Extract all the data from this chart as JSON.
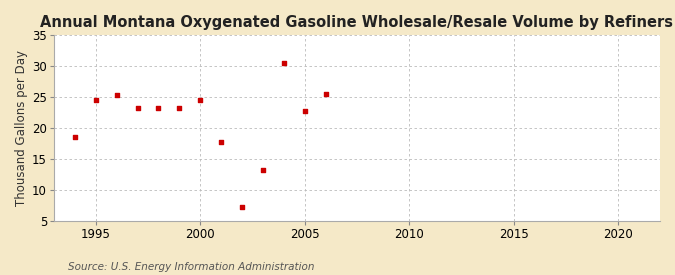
{
  "title": "Annual Montana Oxygenated Gasoline Wholesale/Resale Volume by Refiners",
  "ylabel": "Thousand Gallons per Day",
  "source": "Source: U.S. Energy Information Administration",
  "fig_background_color": "#f5e9c8",
  "plot_background_color": "#ffffff",
  "marker_color": "#cc0000",
  "years": [
    1994,
    1995,
    1996,
    1997,
    1998,
    1999,
    2000,
    2001,
    2002,
    2003,
    2004,
    2005,
    2006
  ],
  "values": [
    18.5,
    24.5,
    25.3,
    23.2,
    23.2,
    23.2,
    24.5,
    17.8,
    7.2,
    13.2,
    30.5,
    22.8,
    25.5
  ],
  "xlim": [
    1993,
    2022
  ],
  "ylim": [
    5,
    35
  ],
  "yticks": [
    5,
    10,
    15,
    20,
    25,
    30,
    35
  ],
  "xticks": [
    1995,
    2000,
    2005,
    2010,
    2015,
    2020
  ],
  "grid_color": "#bbbbbb",
  "title_fontsize": 10.5,
  "label_fontsize": 8.5,
  "tick_fontsize": 8.5,
  "source_fontsize": 7.5
}
